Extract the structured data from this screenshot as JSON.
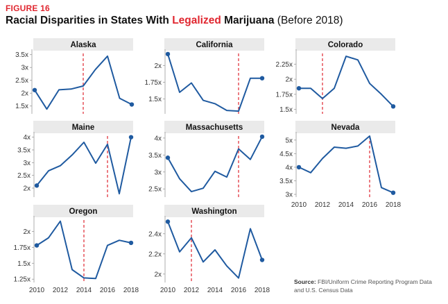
{
  "figure_label": "FIGURE 16",
  "title": {
    "part1": "Racial Disparities in States With ",
    "highlight": "Legalized",
    "part2": " Marijuana",
    "paren": " (Before 2018)"
  },
  "source": {
    "label": "Source:",
    "text": " FBI/Uniform Crime Reporting Program Data and U.S. Census Data"
  },
  "colors": {
    "line": "#1f5aa0",
    "marker": "#e0262f",
    "panel_header": "#eaeaea",
    "axis": "#999999"
  },
  "chart_data": [
    {
      "type": "line",
      "title": "Alaska",
      "x": [
        2010,
        2011,
        2012,
        2013,
        2014,
        2015,
        2016,
        2017,
        2018
      ],
      "values": [
        2.12,
        1.38,
        2.13,
        2.16,
        2.28,
        2.92,
        3.44,
        1.8,
        1.56
      ],
      "ylim": [
        1.25,
        3.6
      ],
      "yticks": [
        1.5,
        2,
        2.5,
        3,
        3.5
      ],
      "ytick_labels": [
        "1.5x",
        "2x",
        "2.5x",
        "3x",
        "3.5x"
      ],
      "marker_x": 2014,
      "xticks": [],
      "xtick_labels": []
    },
    {
      "type": "line",
      "title": "California",
      "x": [
        2010,
        2011,
        2012,
        2013,
        2014,
        2015,
        2016,
        2017,
        2018
      ],
      "values": [
        2.17,
        1.6,
        1.74,
        1.48,
        1.43,
        1.33,
        1.32,
        1.81,
        1.81
      ],
      "ylim": [
        1.3,
        2.2
      ],
      "yticks": [
        1.5,
        1.75,
        2
      ],
      "ytick_labels": [
        "1.5x",
        "1.75x",
        "2x"
      ],
      "marker_x": 2016,
      "xticks": [],
      "xtick_labels": []
    },
    {
      "type": "line",
      "title": "Colorado",
      "x": [
        2010,
        2011,
        2012,
        2013,
        2014,
        2015,
        2016,
        2017,
        2018
      ],
      "values": [
        1.85,
        1.85,
        1.68,
        1.85,
        2.38,
        2.32,
        1.93,
        1.75,
        1.55
      ],
      "ylim": [
        1.45,
        2.45
      ],
      "yticks": [
        1.5,
        1.75,
        2,
        2.25
      ],
      "ytick_labels": [
        "1.5x",
        "1.75x",
        "2x",
        "2.25x"
      ],
      "marker_x": 2012,
      "xticks": [],
      "xtick_labels": []
    },
    {
      "type": "line",
      "title": "Maine",
      "x": [
        2010,
        2011,
        2012,
        2013,
        2014,
        2015,
        2016,
        2017,
        2018
      ],
      "values": [
        2.1,
        2.68,
        2.88,
        3.3,
        3.8,
        2.98,
        3.72,
        1.78,
        4.0
      ],
      "ylim": [
        1.7,
        4.1
      ],
      "yticks": [
        2,
        2.5,
        3,
        3.5,
        4
      ],
      "ytick_labels": [
        "2x",
        "2.5x",
        "3x",
        "3.5x",
        "4x"
      ],
      "marker_x": 2016,
      "xticks": [],
      "xtick_labels": []
    },
    {
      "type": "line",
      "title": "Massachusetts",
      "x": [
        2010,
        2011,
        2012,
        2013,
        2014,
        2015,
        2016,
        2017,
        2018
      ],
      "values": [
        3.42,
        2.8,
        2.42,
        2.52,
        3.02,
        2.85,
        3.68,
        3.37,
        4.04
      ],
      "ylim": [
        2.3,
        4.1
      ],
      "yticks": [
        2.5,
        3,
        3.5,
        4
      ],
      "ytick_labels": [
        "2.5x",
        "3x",
        "3.5x",
        "4x"
      ],
      "marker_x": 2016,
      "xticks": [],
      "xtick_labels": []
    },
    {
      "type": "line",
      "title": "Nevada",
      "x": [
        2010,
        2011,
        2012,
        2013,
        2014,
        2015,
        2016,
        2017,
        2018
      ],
      "values": [
        4.0,
        3.8,
        4.32,
        4.74,
        4.7,
        4.78,
        5.15,
        3.25,
        3.06
      ],
      "ylim": [
        2.95,
        5.2
      ],
      "yticks": [
        3,
        3.5,
        4,
        4.5,
        5
      ],
      "ytick_labels": [
        "3x",
        "3.5x",
        "4x",
        "4.5x",
        "5x"
      ],
      "marker_x": 2016,
      "xticks": [
        2010,
        2012,
        2014,
        2016,
        2018
      ],
      "xtick_labels": [
        "2010",
        "2012",
        "2014",
        "2016",
        "2018"
      ]
    },
    {
      "type": "line",
      "title": "Oregon",
      "x": [
        2010,
        2011,
        2012,
        2013,
        2014,
        2015,
        2016,
        2017,
        2018
      ],
      "values": [
        1.78,
        1.9,
        2.16,
        1.4,
        1.27,
        1.26,
        1.78,
        1.86,
        1.82
      ],
      "ylim": [
        1.22,
        2.2
      ],
      "yticks": [
        1.25,
        1.5,
        1.75,
        2
      ],
      "ytick_labels": [
        "1.25x",
        "1.5x",
        "1.75x",
        "2x"
      ],
      "marker_x": 2014,
      "xticks": [
        2010,
        2012,
        2014,
        2016,
        2018
      ],
      "xtick_labels": [
        "2010",
        "2012",
        "2014",
        "2016",
        "2018"
      ]
    },
    {
      "type": "line",
      "title": "Washington",
      "x": [
        2010,
        2011,
        2012,
        2013,
        2014,
        2015,
        2016,
        2017,
        2018
      ],
      "values": [
        2.52,
        2.22,
        2.36,
        2.12,
        2.24,
        2.08,
        1.96,
        2.45,
        2.14
      ],
      "ylim": [
        1.93,
        2.55
      ],
      "yticks": [
        2,
        2.2,
        2.4
      ],
      "ytick_labels": [
        "2x",
        "2.2x",
        "2.4x"
      ],
      "marker_x": 2012,
      "xticks": [
        2010,
        2012,
        2014,
        2016,
        2018
      ],
      "xtick_labels": [
        "2010",
        "2012",
        "2014",
        "2016",
        "2018"
      ]
    }
  ]
}
